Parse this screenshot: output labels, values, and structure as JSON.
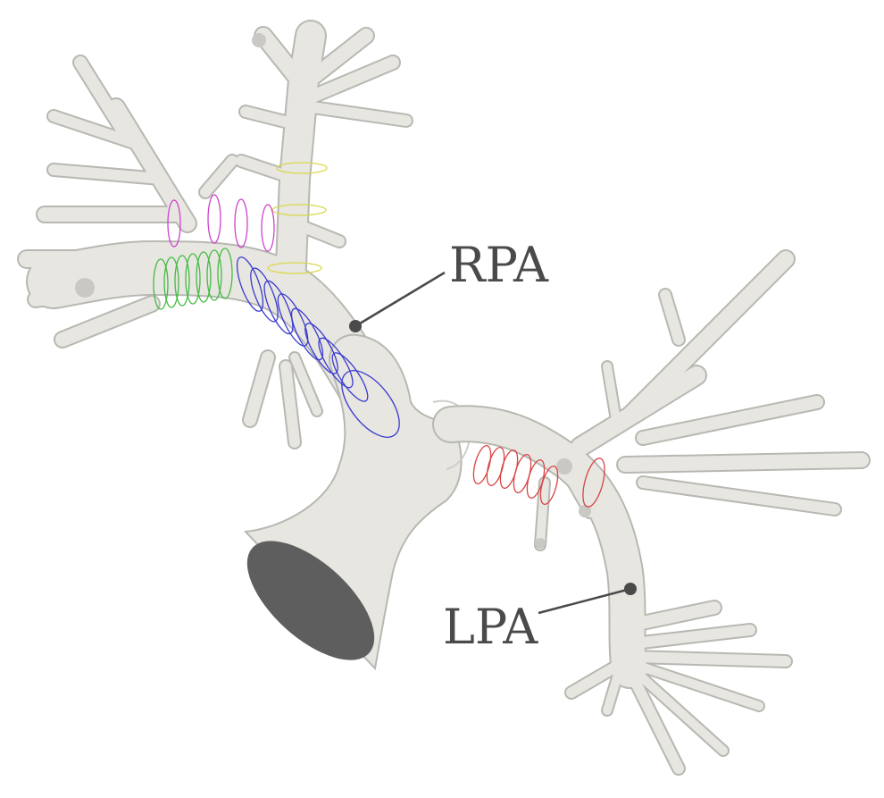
{
  "labels": {
    "rpa": "RPA",
    "lpa": "LPA"
  },
  "colors": {
    "background": "#ffffff",
    "vessel_fill": "#e7e6e1",
    "vessel_outline": "#b8b8b3",
    "inlet_face": "#5e5e5e",
    "label_text": "#4a4a4a",
    "leader_line": "#4a4a4a",
    "ring_yellow": "#d8d84a",
    "ring_magenta": "#cc44cc",
    "ring_green": "#44bb44",
    "ring_blue": "#3a3ad0",
    "ring_red": "#d84444"
  }
}
